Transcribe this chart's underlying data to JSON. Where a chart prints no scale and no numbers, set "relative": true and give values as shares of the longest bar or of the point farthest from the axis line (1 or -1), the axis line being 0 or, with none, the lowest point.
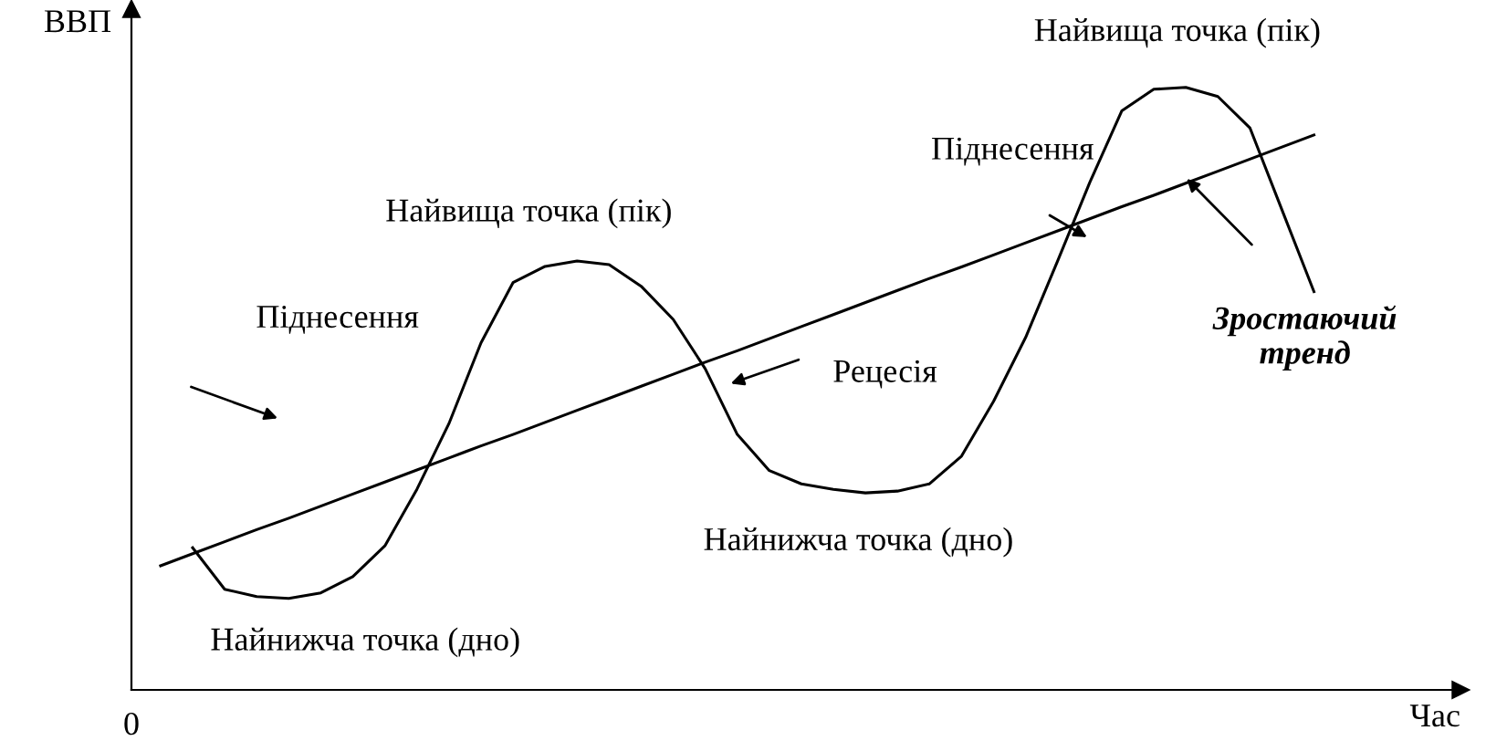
{
  "chart_data": {
    "type": "line",
    "relative": true,
    "xlabel": "Час",
    "ylabel": "ВВП",
    "categories": [
      null,
      null,
      null,
      null,
      null,
      null,
      null,
      null,
      null,
      null,
      null,
      null,
      null,
      null,
      null,
      null,
      null,
      null,
      null,
      null,
      null,
      null,
      null,
      null,
      null,
      null,
      null,
      null,
      null,
      null,
      null,
      null,
      null,
      null,
      null,
      null,
      null
    ],
    "series": [
      {
        "color": "#000000",
        "values": [
          null,
          0.236,
          0.167,
          0.155,
          0.152,
          0.161,
          0.188,
          0.239,
          0.333,
          0.442,
          0.576,
          0.676,
          0.703,
          0.712,
          0.706,
          0.67,
          0.615,
          0.533,
          0.424,
          0.364,
          0.342,
          0.333,
          0.327,
          0.33,
          0.342,
          0.388,
          0.479,
          0.585,
          0.712,
          0.842,
          0.961,
          0.997,
          1.0,
          0.985,
          0.933,
          0.797,
          0.661
        ]
      },
      {
        "color": "#000000",
        "values": [
          0.206,
          0.226,
          0.246,
          0.266,
          0.285,
          0.305,
          0.325,
          0.345,
          0.365,
          0.385,
          0.405,
          0.424,
          0.444,
          0.464,
          0.484,
          0.504,
          0.524,
          0.544,
          0.563,
          0.583,
          0.603,
          0.623,
          0.643,
          0.663,
          0.683,
          0.702,
          0.722,
          0.742,
          0.762,
          0.782,
          0.802,
          0.821,
          0.841,
          0.861,
          0.881,
          0.901,
          0.921
        ]
      }
    ],
    "annotations": [
      "Найнижча точка (дно)",
      "Піднесення",
      "Найвища точка (пік)",
      "Рецесія",
      "Найнижча точка (дно)",
      "Піднесення",
      "Найвища точка (пік)",
      "Зростаючий\nтренд",
      "0"
    ]
  }
}
